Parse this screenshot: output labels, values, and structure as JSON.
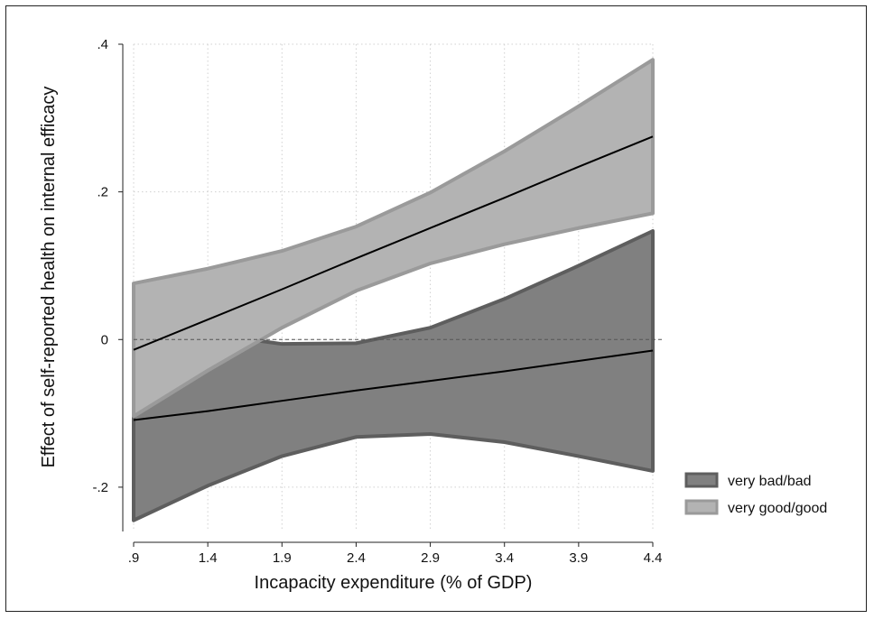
{
  "chart_data": {
    "type": "area",
    "xlabel": "Incapacity expenditure (% of GDP)",
    "ylabel": "Effect of self-reported health on internal efficacy",
    "xlim": [
      0.9,
      4.4
    ],
    "ylim": [
      -0.26,
      0.4
    ],
    "x_ticks": [
      0.9,
      1.4,
      1.9,
      2.4,
      2.9,
      3.4,
      3.9,
      4.4
    ],
    "x_tick_labels": [
      ".9",
      "1.4",
      "1.9",
      "2.4",
      "2.9",
      "3.4",
      "3.9",
      "4.4"
    ],
    "y_ticks": [
      -0.2,
      0,
      0.2,
      0.4
    ],
    "y_tick_labels": [
      "-.2",
      "0",
      ".2",
      ".4"
    ],
    "grid": true,
    "reference_line_y": 0,
    "legend_position": "right",
    "x": [
      0.9,
      1.4,
      1.9,
      2.4,
      2.9,
      3.4,
      3.9,
      4.4
    ],
    "series": [
      {
        "name": "very bad/bad",
        "fill_color": "#808080",
        "edge_color": "#5e5e5e",
        "estimate": [
          -0.109,
          -0.097,
          -0.083,
          -0.069,
          -0.056,
          -0.043,
          -0.029,
          -0.015
        ],
        "upper": [
          0.025,
          0.008,
          -0.006,
          -0.005,
          0.016,
          0.055,
          0.1,
          0.147
        ],
        "lower": [
          -0.245,
          -0.198,
          -0.158,
          -0.132,
          -0.128,
          -0.139,
          -0.158,
          -0.178
        ]
      },
      {
        "name": "very good/good",
        "fill_color": "#b3b3b3",
        "edge_color": "#9a9a9a",
        "estimate": [
          -0.014,
          0.027,
          0.068,
          0.11,
          0.151,
          0.192,
          0.234,
          0.275
        ],
        "upper": [
          0.076,
          0.096,
          0.12,
          0.153,
          0.199,
          0.255,
          0.316,
          0.379
        ],
        "lower": [
          -0.104,
          -0.042,
          0.016,
          0.066,
          0.103,
          0.129,
          0.151,
          0.171
        ]
      }
    ]
  }
}
